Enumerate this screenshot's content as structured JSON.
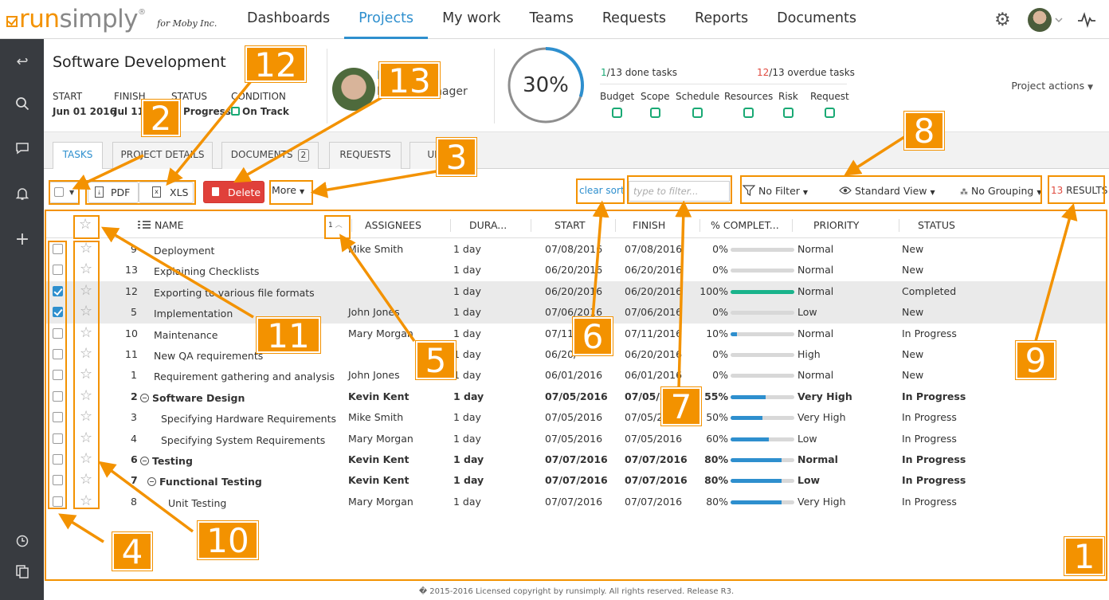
{
  "app": {
    "logo_run": "run",
    "logo_simply": "simply",
    "logo_reg": "®",
    "for": "for Moby Inc."
  },
  "nav": [
    "Dashboards",
    "Projects",
    "My work",
    "Teams",
    "Requests",
    "Reports",
    "Documents"
  ],
  "project": {
    "title": "Software Development",
    "start_label": "START",
    "start": "Jun 01 2016",
    "finish_label": "FINISH",
    "finish": "Jul 11",
    "status_label": "STATUS",
    "status": "Progress",
    "condition_label": "CONDITION",
    "condition": "On Track",
    "pm_name": "M",
    "pm_role": "Project Manager",
    "progress": "30%",
    "progress_value": 30,
    "done_n": "1",
    "done_rest": "/13 done tasks",
    "over_n": "12",
    "over_rest": "/13 overdue tasks",
    "indicators": [
      "Budget",
      "Scope",
      "Schedule",
      "Resources",
      "Risk",
      "Request"
    ],
    "actions": "Project actions"
  },
  "tabs": [
    "TASKS",
    "PROJECT DETAILS",
    "DOCUMENTS",
    "REQUESTS",
    "UPD"
  ],
  "documents_count": "2",
  "toolbar": {
    "pdf": "PDF",
    "xls": "XLS",
    "delete": "Delete",
    "more": "More",
    "clear_sort": "clear sort",
    "filter_placeholder": "type to filter...",
    "no_filter": "No Filter",
    "standard_view": "Standard View",
    "no_grouping": "No Grouping",
    "results_n": "13",
    "results": " RESULTS"
  },
  "columns": {
    "sort": "1",
    "name": "NAME",
    "assignees": "ASSIGNEES",
    "duration": "DURA...",
    "start": "START",
    "finish": "FINISH",
    "complete": "% COMPLET...",
    "priority": "PRIORITY",
    "status": "STATUS"
  },
  "rows": [
    {
      "id": "9",
      "name": "Deployment",
      "indent": 0,
      "assignee": "Mike Smith",
      "dur": "1 day",
      "start": "07/08/2016",
      "finish": "07/08/2016",
      "pct": "0%",
      "p": 0,
      "priority": "Normal",
      "status": "New",
      "checked": false,
      "bold": false,
      "group": false
    },
    {
      "id": "13",
      "name": "Explaining Checklists",
      "indent": 0,
      "assignee": "",
      "dur": "1 day",
      "start": "06/20/2016",
      "finish": "06/20/2016",
      "pct": "0%",
      "p": 0,
      "priority": "Normal",
      "status": "New",
      "checked": false,
      "bold": false,
      "group": false
    },
    {
      "id": "12",
      "name": "Exporting to various file formats",
      "indent": 0,
      "assignee": "",
      "dur": "1 day",
      "start": "06/20/2016",
      "finish": "06/20/2016",
      "pct": "100%",
      "p": 100,
      "priority": "Normal",
      "status": "Completed",
      "checked": true,
      "bold": false,
      "group": false
    },
    {
      "id": "5",
      "name": "Implementation",
      "indent": 0,
      "assignee": "John Jones",
      "dur": "1 day",
      "start": "07/06/2016",
      "finish": "07/06/2016",
      "pct": "0%",
      "p": 0,
      "priority": "Low",
      "status": "New",
      "checked": true,
      "bold": false,
      "group": false
    },
    {
      "id": "10",
      "name": "Maintenance",
      "indent": 0,
      "assignee": "Mary Morgan",
      "dur": "1 day",
      "start": "07/11/2",
      "finish": "07/11/2016",
      "pct": "10%",
      "p": 10,
      "priority": "Normal",
      "status": "In Progress",
      "checked": false,
      "bold": false,
      "group": false
    },
    {
      "id": "11",
      "name": "New QA requirements",
      "indent": 0,
      "assignee": "",
      "dur": "1 day",
      "start": "06/20/",
      "finish": "06/20/2016",
      "pct": "0%",
      "p": 0,
      "priority": "High",
      "status": "New",
      "checked": false,
      "bold": false,
      "group": false
    },
    {
      "id": "1",
      "name": "Requirement gathering and analysis",
      "indent": 0,
      "assignee": "John Jones",
      "dur": "1 day",
      "start": "06/01/2016",
      "finish": "06/01/2016",
      "pct": "0%",
      "p": 0,
      "priority": "Normal",
      "status": "New",
      "checked": false,
      "bold": false,
      "group": false
    },
    {
      "id": "2",
      "name": "Software Design",
      "indent": 0,
      "assignee": "Kevin Kent",
      "dur": "1 day",
      "start": "07/05/2016",
      "finish": "07/05/201",
      "pct": "55%",
      "p": 55,
      "priority": "Very High",
      "status": "In Progress",
      "checked": false,
      "bold": true,
      "group": true
    },
    {
      "id": "3",
      "name": "Specifying Hardware Requirements",
      "indent": 1,
      "assignee": "Mike Smith",
      "dur": "1 day",
      "start": "07/05/2016",
      "finish": "07/05/20",
      "pct": "50%",
      "p": 50,
      "priority": "Very High",
      "status": "In Progress",
      "checked": false,
      "bold": false,
      "group": false
    },
    {
      "id": "4",
      "name": "Specifying System Requirements",
      "indent": 1,
      "assignee": "Mary Morgan",
      "dur": "1 day",
      "start": "07/05/2016",
      "finish": "07/05/2016",
      "pct": "60%",
      "p": 60,
      "priority": "Low",
      "status": "In Progress",
      "checked": false,
      "bold": false,
      "group": false
    },
    {
      "id": "6",
      "name": "Testing",
      "indent": 0,
      "assignee": "Kevin Kent",
      "dur": "1 day",
      "start": "07/07/2016",
      "finish": "07/07/2016",
      "pct": "80%",
      "p": 80,
      "priority": "Normal",
      "status": "In Progress",
      "checked": false,
      "bold": true,
      "group": true
    },
    {
      "id": "7",
      "name": "Functional Testing",
      "indent": 1,
      "assignee": "Kevin Kent",
      "dur": "1 day",
      "start": "07/07/2016",
      "finish": "07/07/2016",
      "pct": "80%",
      "p": 80,
      "priority": "Low",
      "status": "In Progress",
      "checked": false,
      "bold": true,
      "group": true
    },
    {
      "id": "8",
      "name": "Unit Testing",
      "indent": 2,
      "assignee": "Mary Morgan",
      "dur": "1 day",
      "start": "07/07/2016",
      "finish": "07/07/2016",
      "pct": "80%",
      "p": 80,
      "priority": "Very High",
      "status": "In Progress",
      "checked": false,
      "bold": false,
      "group": false
    }
  ],
  "callouts": [
    "1",
    "2",
    "3",
    "4",
    "5",
    "6",
    "7",
    "8",
    "9",
    "10",
    "11",
    "12",
    "13"
  ],
  "footer": "� 2015-2016 Licensed copyright by runsimply. All rights reserved. Release R3.",
  "colors": {
    "accent": "#2e8fce",
    "orange": "#f39200",
    "green": "#19a974",
    "red": "#e04a3f",
    "sidebar": "#383b40"
  }
}
